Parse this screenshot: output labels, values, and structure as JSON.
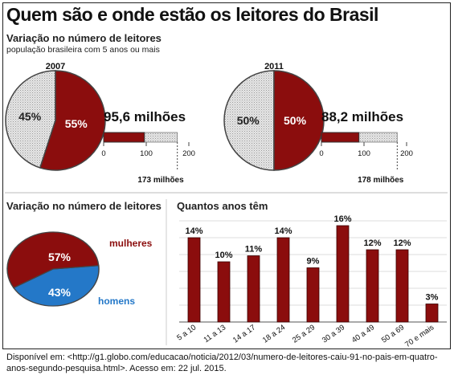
{
  "title": "Quem são e onde estão os leitores do Brasil",
  "top_section": {
    "title": "Variação no número de leitores",
    "subtitle": "população brasileira com 5 anos ou mais"
  },
  "colors": {
    "red": "#8b0d0d",
    "blue": "#2478c8",
    "grey": "#d9d9d9",
    "line": "#444444"
  },
  "chart_data": [
    {
      "type": "pie",
      "title": "2007",
      "slices": [
        {
          "label": "55%",
          "value": 55,
          "color": "#8b0d0d"
        },
        {
          "label": "45%",
          "value": 45,
          "color": "#d9d9d9"
        }
      ]
    },
    {
      "type": "bar",
      "orientation": "horizontal",
      "title": "95,6 milhões",
      "value": 95.6,
      "total": 173,
      "total_label": "173 milhões",
      "ticks": [
        "0",
        "100",
        "200"
      ],
      "xlim": [
        0,
        200
      ]
    },
    {
      "type": "pie",
      "title": "2011",
      "slices": [
        {
          "label": "50%",
          "value": 50,
          "color": "#8b0d0d"
        },
        {
          "label": "50%",
          "value": 50,
          "color": "#d9d9d9"
        }
      ]
    },
    {
      "type": "bar",
      "orientation": "horizontal",
      "title": "88,2 milhões",
      "value": 88.2,
      "total": 178,
      "total_label": "178 milhões",
      "ticks": [
        "0",
        "100",
        "200"
      ],
      "xlim": [
        0,
        200
      ]
    },
    {
      "type": "pie",
      "title": "Variação no número de leitores",
      "slices": [
        {
          "label": "57%",
          "name": "mulheres",
          "value": 57,
          "color": "#8b0d0d"
        },
        {
          "label": "43%",
          "name": "homens",
          "value": 43,
          "color": "#2478c8"
        }
      ]
    },
    {
      "type": "bar",
      "title": "Quantos anos têm",
      "categories": [
        "5 a 10",
        "11 a 13",
        "14 a 17",
        "18 a 24",
        "25 a 29",
        "30 a 39",
        "40 a 49",
        "50 a 69",
        "70 e mais"
      ],
      "values": [
        14,
        10,
        11,
        14,
        9,
        16,
        12,
        12,
        3
      ],
      "value_labels": [
        "14%",
        "10%",
        "11%",
        "14%",
        "9%",
        "16%",
        "12%",
        "12%",
        "3%"
      ],
      "ylim": [
        0,
        18
      ]
    }
  ],
  "footer": {
    "text": "Disponível em: <http://g1.globo.com/educacao/noticia/2012/03/numero-de-leitores-caiu-91-no-pais-em-quatro-anos-segundo-pesquisa.html>. Acesso em: 22 jul. 2015."
  }
}
